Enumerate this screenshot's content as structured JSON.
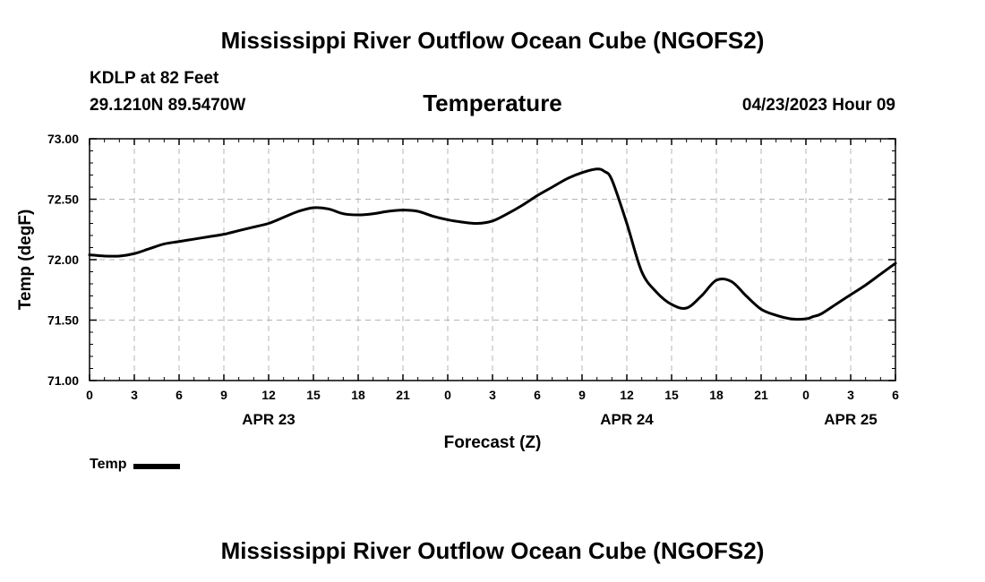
{
  "header": {
    "title_top": "Mississippi River Outflow Ocean Cube (NGOFS2)",
    "title_bottom": "Mississippi River Outflow Ocean Cube (NGOFS2)",
    "station": "KDLP at 82 Feet",
    "coords": "29.1210N  89.5470W",
    "subtitle": "Temperature",
    "timestamp": "04/23/2023 Hour 09"
  },
  "legend": {
    "label": "Temp"
  },
  "chart_data": {
    "type": "line",
    "title": "Temperature",
    "xlabel": "Forecast (Z)",
    "ylabel": "Temp (degF)",
    "ylim": [
      71.0,
      73.0
    ],
    "yticks": [
      "71.00",
      "71.50",
      "72.00",
      "72.50",
      "73.00"
    ],
    "ytick_values": [
      71.0,
      71.5,
      72.0,
      72.5,
      73.0
    ],
    "xlim": [
      0,
      54
    ],
    "xtick_labels": [
      "0",
      "3",
      "6",
      "9",
      "12",
      "15",
      "18",
      "21",
      "0",
      "3",
      "6",
      "9",
      "12",
      "15",
      "18",
      "21",
      "0",
      "3",
      "6"
    ],
    "date_labels": [
      {
        "hour": 12,
        "label": "APR 23"
      },
      {
        "hour": 36,
        "label": "APR 24"
      },
      {
        "hour": 51,
        "label": "APR 25"
      }
    ],
    "grid": true,
    "series": [
      {
        "name": "Temp",
        "x": [
          0,
          1,
          2,
          3,
          4,
          5,
          6,
          7,
          8,
          9,
          10,
          11,
          12,
          13,
          14,
          15,
          16,
          17,
          18,
          19,
          20,
          21,
          22,
          23,
          24,
          25,
          26,
          27,
          28,
          29,
          30,
          31,
          32,
          33,
          34,
          34.5,
          35,
          36,
          37,
          38,
          39,
          40,
          41,
          42,
          43,
          44,
          45,
          46,
          47,
          48,
          48.5,
          49,
          50,
          51,
          52,
          53,
          54
        ],
        "values": [
          72.04,
          72.03,
          72.03,
          72.05,
          72.09,
          72.13,
          72.15,
          72.17,
          72.19,
          72.21,
          72.24,
          72.27,
          72.3,
          72.35,
          72.4,
          72.43,
          72.42,
          72.38,
          72.37,
          72.38,
          72.4,
          72.41,
          72.4,
          72.36,
          72.33,
          72.31,
          72.3,
          72.32,
          72.38,
          72.45,
          72.53,
          72.6,
          72.67,
          72.72,
          72.75,
          72.73,
          72.66,
          72.3,
          71.9,
          71.73,
          71.63,
          71.6,
          71.7,
          71.83,
          71.82,
          71.7,
          71.59,
          71.54,
          71.51,
          71.51,
          71.53,
          71.55,
          71.63,
          71.71,
          71.79,
          71.88,
          71.97
        ]
      }
    ]
  }
}
